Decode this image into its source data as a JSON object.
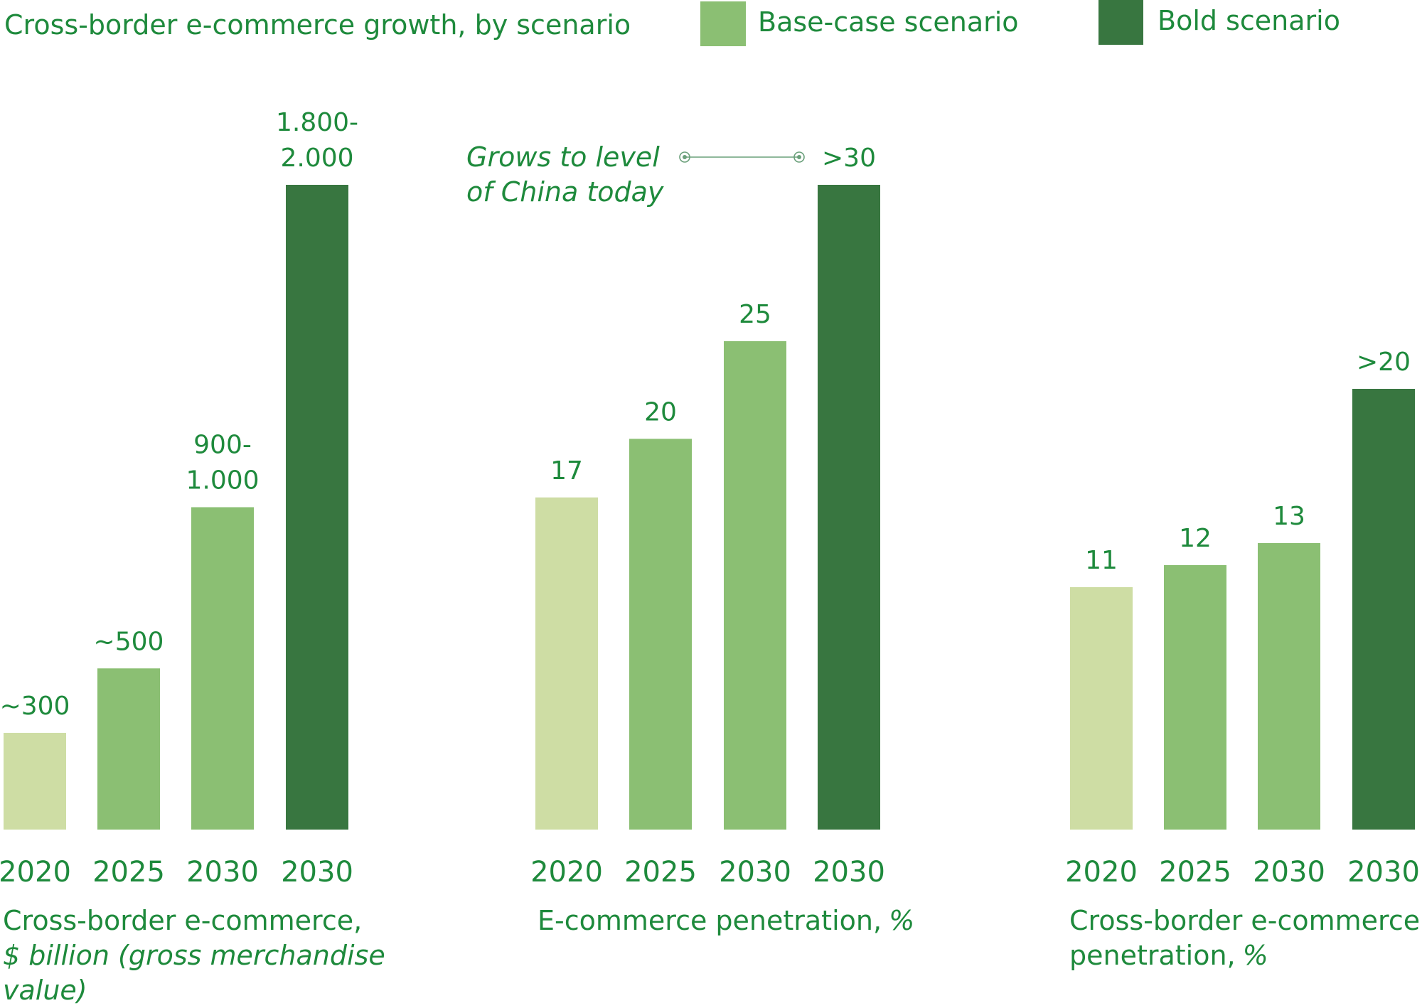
{
  "title": "Cross-border e-commerce growth, by scenario",
  "legend": [
    {
      "label": "Base-case scenario",
      "color": "#8bbf73"
    },
    {
      "label": "Bold scenario",
      "color": "#387640"
    }
  ],
  "colors": {
    "actual": "#cedda4",
    "base": "#8bbf73",
    "bold": "#387640",
    "text": "#1e8a3c",
    "annotation_line": "#6aa07a"
  },
  "annotation": {
    "lines": [
      "Grows to level",
      "of China today"
    ]
  },
  "chart_data": [
    {
      "type": "bar",
      "title": "Cross-border e-commerce growth, by scenario",
      "caption": [
        "Cross-border e-commerce,"
      ],
      "caption_italic": [
        "$ billion (gross merchandise",
        "value)"
      ],
      "categories": [
        "2020",
        "2025",
        "2030",
        "2030"
      ],
      "values": [
        300,
        500,
        1000,
        2000
      ],
      "labels": [
        [
          "~300"
        ],
        [
          "~500"
        ],
        [
          "900-",
          "1.000"
        ],
        [
          "1.800-",
          "2.000"
        ]
      ],
      "kinds": [
        "actual",
        "base",
        "base",
        "bold"
      ],
      "ylim": [
        0,
        2000
      ]
    },
    {
      "type": "bar",
      "caption": [
        "E-commerce penetration,"
      ],
      "caption_suffix_italic": "%",
      "categories": [
        "2020",
        "2025",
        "2030",
        "2030"
      ],
      "values": [
        17,
        20,
        25,
        33
      ],
      "labels": [
        [
          "17"
        ],
        [
          "20"
        ],
        [
          "25"
        ],
        [
          ">30"
        ]
      ],
      "kinds": [
        "actual",
        "base",
        "base",
        "bold"
      ],
      "ylim": [
        0,
        33
      ]
    },
    {
      "type": "bar",
      "caption": [
        "Cross-border e-commerce",
        "penetration,"
      ],
      "caption_suffix_italic": "%",
      "categories": [
        "2020",
        "2025",
        "2030",
        "2030"
      ],
      "values": [
        11,
        12,
        13,
        20
      ],
      "labels": [
        [
          "11"
        ],
        [
          "12"
        ],
        [
          "13"
        ],
        [
          ">20"
        ]
      ],
      "kinds": [
        "actual",
        "base",
        "base",
        "bold"
      ],
      "ylim": [
        0,
        20
      ]
    }
  ]
}
